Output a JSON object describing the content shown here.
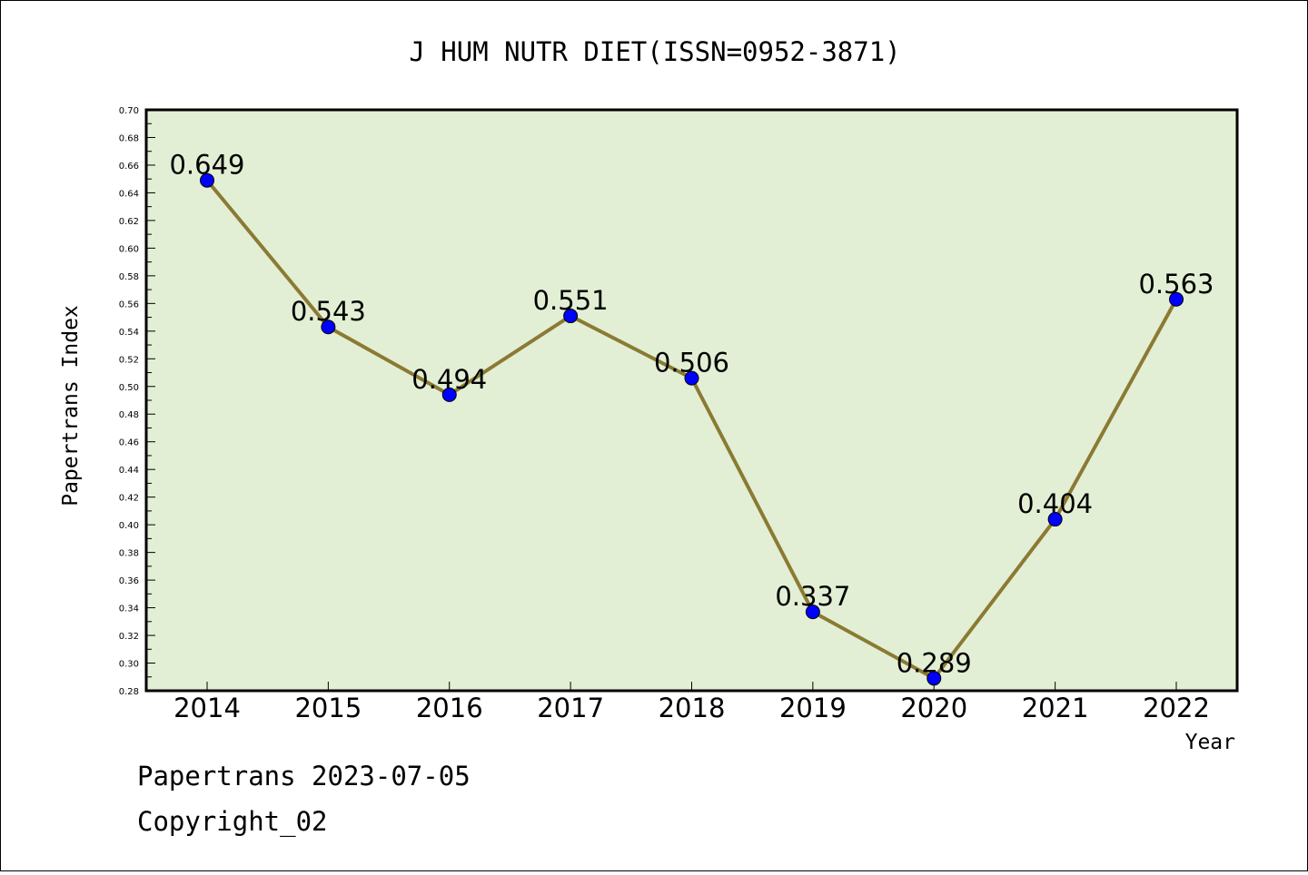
{
  "chart_data": {
    "type": "line",
    "title": "J HUM NUTR DIET(ISSN=0952-3871)",
    "xlabel": "Year",
    "ylabel": "Papertrans Index",
    "categories": [
      "2014",
      "2015",
      "2016",
      "2017",
      "2018",
      "2019",
      "2020",
      "2021",
      "2022"
    ],
    "series": [
      {
        "values": [
          0.649,
          0.543,
          0.494,
          0.551,
          0.506,
          0.337,
          0.289,
          0.404,
          0.563
        ],
        "data_labels": [
          "0.649",
          "0.543",
          "0.494",
          "0.551",
          "0.506",
          "0.337",
          "0.289",
          "0.404",
          "0.563"
        ]
      }
    ],
    "ylim": [
      0.28,
      0.7
    ],
    "yticks": [
      "0.28",
      "0.30",
      "0.32",
      "0.34",
      "0.36",
      "0.38",
      "0.40",
      "0.42",
      "0.44",
      "0.46",
      "0.48",
      "0.50",
      "0.52",
      "0.54",
      "0.56",
      "0.58",
      "0.60",
      "0.62",
      "0.64",
      "0.66",
      "0.68",
      "0.70"
    ],
    "grid": false,
    "colors": {
      "plot_background": "#e2efd5",
      "line": "#8b7a33",
      "marker": "#0000ff"
    }
  },
  "footer": {
    "line1": "Papertrans 2023-07-05",
    "line2": "Copyright_02"
  }
}
